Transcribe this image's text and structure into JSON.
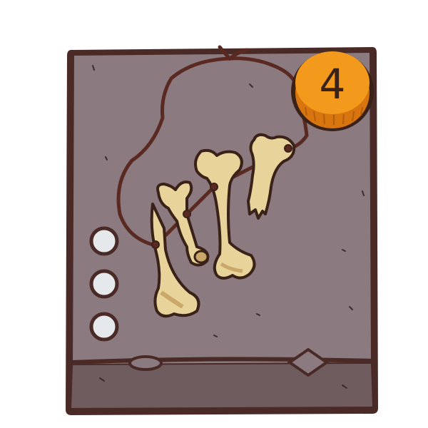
{
  "card": {
    "cost": "4",
    "artwork": "bone-necklace",
    "slots": [
      {
        "state": "empty"
      },
      {
        "state": "empty"
      },
      {
        "state": "empty"
      }
    ],
    "colors": {
      "frame": "#4a2a26",
      "panel": "#8b7a80",
      "footer": "#6f5c5e",
      "coin": "#f39a1c",
      "coin_dark": "#d9750e",
      "bone": "#e8d49a",
      "bone_shade": "#c9a86a",
      "cord": "#5a2a22",
      "slot": "#e6e9ec"
    }
  }
}
